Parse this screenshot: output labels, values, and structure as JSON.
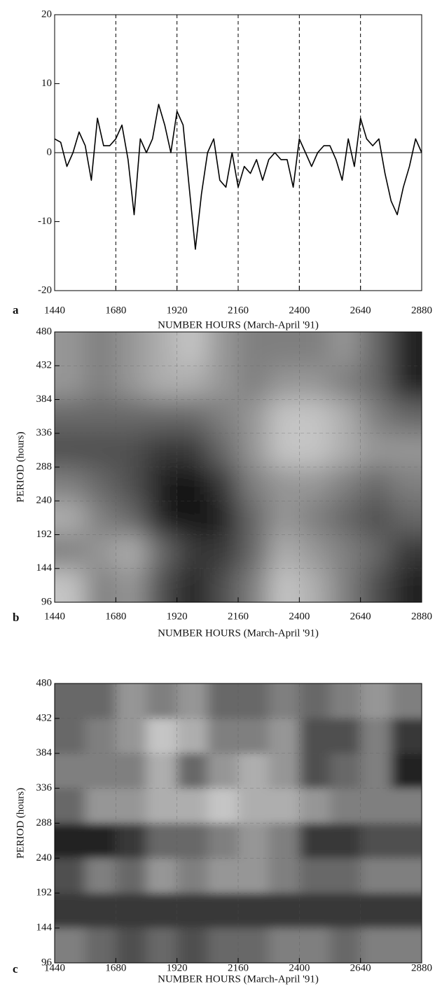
{
  "chart_data": [
    {
      "type": "line",
      "panel_label": "a",
      "xlabel": "NUMBER HOURS (March-April '91)",
      "x": [
        1440,
        1464,
        1488,
        1512,
        1536,
        1560,
        1584,
        1608,
        1632,
        1656,
        1680,
        1704,
        1728,
        1752,
        1776,
        1800,
        1824,
        1848,
        1872,
        1896,
        1920,
        1944,
        1968,
        1992,
        2016,
        2040,
        2064,
        2088,
        2112,
        2136,
        2160,
        2184,
        2208,
        2232,
        2256,
        2280,
        2304,
        2328,
        2352,
        2376,
        2400,
        2424,
        2448,
        2472,
        2496,
        2520,
        2544,
        2568,
        2592,
        2616,
        2640,
        2664,
        2688,
        2712,
        2736,
        2760,
        2784,
        2808,
        2832,
        2856,
        2880
      ],
      "values": [
        2,
        1.5,
        -2,
        0,
        3,
        1,
        -4,
        5,
        1,
        1,
        2,
        4,
        -1,
        -9,
        2,
        0,
        2,
        7,
        4,
        0,
        6,
        4,
        -5,
        -14,
        -6,
        0,
        2,
        -4,
        -5,
        0,
        -5,
        -2,
        -3,
        -1,
        -4,
        -1,
        0,
        -1,
        -1,
        -5,
        2,
        0,
        -2,
        0,
        1,
        1,
        -1,
        -4,
        2,
        -2,
        5,
        2,
        1,
        2,
        -3,
        -7,
        -9,
        -5,
        -2,
        2,
        0
      ],
      "color": "#000000",
      "xlim": [
        1440,
        2880
      ],
      "ylim": [
        -20,
        20
      ],
      "xticks": [
        1440,
        1680,
        1920,
        2160,
        2400,
        2640,
        2880
      ],
      "yticks": [
        -20,
        -10,
        0,
        10,
        20
      ],
      "grid_x": true,
      "zero_line": true
    },
    {
      "type": "heatmap",
      "panel_label": "b",
      "xlabel": "NUMBER HOURS (March-April '91)",
      "ylabel": "PERIOD (hours)",
      "x": [
        1500,
        1620,
        1740,
        1860,
        1980,
        2100,
        2220,
        2340,
        2460,
        2580,
        2700,
        2820
      ],
      "y": [
        456,
        408,
        360,
        312,
        264,
        216,
        168,
        120
      ],
      "z": [
        [
          4,
          5,
          4,
          3,
          2,
          4,
          5,
          5,
          5,
          4,
          6,
          9
        ],
        [
          4,
          5,
          4,
          3,
          3,
          4,
          5,
          4,
          4,
          5,
          6,
          9
        ],
        [
          6,
          6,
          6,
          6,
          6,
          5,
          4,
          2,
          2,
          3,
          5,
          6
        ],
        [
          7,
          7,
          7,
          8,
          8,
          6,
          4,
          2,
          2,
          3,
          4,
          4
        ],
        [
          5,
          6,
          7,
          9,
          10,
          8,
          5,
          4,
          4,
          5,
          6,
          5
        ],
        [
          3,
          5,
          6,
          9,
          10,
          9,
          6,
          4,
          5,
          6,
          7,
          6
        ],
        [
          5,
          4,
          3,
          6,
          8,
          8,
          6,
          3,
          4,
          5,
          6,
          8
        ],
        [
          2,
          5,
          4,
          7,
          9,
          7,
          5,
          2,
          3,
          5,
          7,
          9
        ]
      ],
      "zlim": [
        0,
        10
      ],
      "colors": [
        "#f4f4f4",
        "#0a0a0a"
      ],
      "xlim": [
        1440,
        2880
      ],
      "ylim": [
        96,
        480
      ],
      "xticks": [
        1440,
        1680,
        1920,
        2160,
        2400,
        2640,
        2880
      ],
      "yticks": [
        96,
        144,
        192,
        240,
        288,
        336,
        384,
        432,
        480
      ],
      "grid": true
    },
    {
      "type": "heatmap",
      "panel_label": "c",
      "xlabel": "NUMBER HOURS (March-April '91)",
      "ylabel": "PERIOD (hours)",
      "x": [
        1500,
        1620,
        1740,
        1860,
        1980,
        2100,
        2220,
        2340,
        2460,
        2580,
        2700,
        2820
      ],
      "y": [
        456,
        408,
        360,
        312,
        264,
        216,
        168,
        120
      ],
      "z": [
        [
          6,
          6,
          4,
          5,
          4,
          6,
          6,
          5,
          6,
          5,
          4,
          5
        ],
        [
          6,
          5,
          4,
          2,
          3,
          5,
          5,
          4,
          7,
          7,
          5,
          8
        ],
        [
          5,
          5,
          5,
          3,
          6,
          4,
          3,
          4,
          7,
          6,
          5,
          9
        ],
        [
          6,
          4,
          4,
          3,
          3,
          2,
          3,
          3,
          4,
          5,
          5,
          5
        ],
        [
          9,
          9,
          8,
          6,
          6,
          5,
          4,
          5,
          8,
          8,
          7,
          7
        ],
        [
          7,
          5,
          6,
          4,
          5,
          4,
          4,
          5,
          6,
          6,
          5,
          5
        ],
        [
          8,
          8,
          8,
          8,
          8,
          8,
          8,
          8,
          8,
          8,
          8,
          8
        ],
        [
          5,
          6,
          7,
          6,
          7,
          6,
          6,
          5,
          5,
          6,
          5,
          5
        ]
      ],
      "zlim": [
        0,
        10
      ],
      "colors": [
        "#f4f4f4",
        "#0a0a0a"
      ],
      "xlim": [
        1440,
        2880
      ],
      "ylim": [
        96,
        480
      ],
      "xticks": [
        1440,
        1680,
        1920,
        2160,
        2400,
        2640,
        2880
      ],
      "yticks": [
        96,
        144,
        192,
        240,
        288,
        336,
        384,
        432,
        480
      ],
      "grid": true
    }
  ]
}
